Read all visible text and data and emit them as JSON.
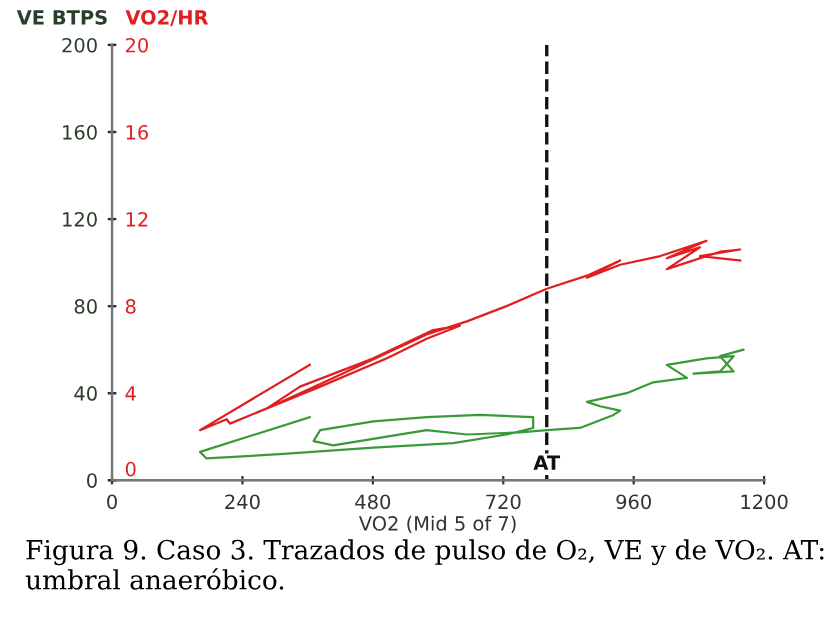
{
  "chart_data": {
    "type": "line",
    "xlabel": "VO2 (Mid 5 of 7)",
    "ylabel": "VE BTPS",
    "y2label": "VO2/HR",
    "xlim": [
      0,
      1200
    ],
    "xticks": [
      0,
      240,
      480,
      720,
      960,
      1200
    ],
    "ylim": [
      0,
      200
    ],
    "yticks": [
      0,
      40,
      80,
      120,
      160,
      200
    ],
    "y2lim": [
      0,
      20
    ],
    "y2ticks": [
      0,
      4,
      8,
      12,
      16,
      20
    ],
    "grid": false,
    "legend": false,
    "marker": "none",
    "line_style": "solid",
    "series": [
      {
        "color": "#3a9a3a",
        "x": [
          364,
          162,
          174,
          309,
          481,
          628,
          726,
          775,
          775,
          677,
          579,
          481,
          383,
          371,
          407,
          579,
          653,
          751,
          800,
          861,
          923,
          935,
          898,
          874,
          947,
          996,
          1058,
          1021,
          1094,
          1144,
          1119,
          1070,
          1144,
          1119,
          1162
        ],
        "values": [
          29,
          13,
          10,
          12,
          15,
          17,
          21,
          24,
          29,
          30,
          29,
          27,
          23,
          18,
          16,
          23,
          21,
          22,
          23,
          24,
          30,
          32,
          34,
          36,
          40,
          45,
          47,
          53,
          56,
          57,
          50,
          49,
          50,
          57,
          60
        ]
      },
      {
        "color": "#e02020",
        "axis": "y2",
        "x": [
          364,
          162,
          211,
          217,
          285,
          383,
          506,
          579,
          640,
          591,
          481,
          346,
          285,
          407,
          579,
          653,
          726,
          800,
          874,
          935,
          874,
          935,
          1009,
          1094,
          1021,
          1082,
          1021,
          1119,
          1156,
          1082,
          1156
        ],
        "values": [
          5.3,
          2.3,
          2.8,
          2.6,
          3.3,
          4.3,
          5.6,
          6.5,
          7.1,
          6.9,
          5.6,
          4.3,
          3.3,
          4.7,
          6.7,
          7.3,
          8.0,
          8.8,
          9.4,
          10.1,
          9.3,
          9.9,
          10.3,
          11.0,
          10.2,
          10.7,
          9.7,
          10.5,
          10.6,
          10.3,
          10.1
        ]
      }
    ],
    "ref_lines": [
      {
        "axis": "x",
        "value": 800,
        "label": "AT",
        "color": "#111111",
        "line_style": "dashed"
      }
    ],
    "annotations": [
      "Figura 9. Caso 3. Trazados de pulso de O₂, VE y de VO₂. AT: umbral anaeróbico."
    ]
  }
}
